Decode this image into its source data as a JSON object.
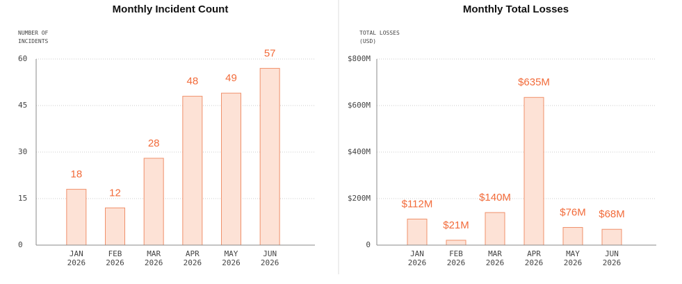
{
  "chart_data": [
    {
      "type": "bar",
      "title": "Monthly Incident Count",
      "y_label": "NUMBER OF INCIDENTS",
      "categories": [
        "JAN 2026",
        "FEB 2026",
        "MAR 2026",
        "APR 2026",
        "MAY 2026",
        "JUN 2026"
      ],
      "values": [
        18,
        12,
        28,
        48,
        49,
        57
      ],
      "color": "#fde2d6",
      "edge_color": "#f0906a",
      "label_color": "#f26b3a",
      "ylim": [
        0,
        60
      ],
      "yticks": [
        0,
        15,
        30,
        45,
        60
      ],
      "grid": true
    },
    {
      "type": "bar",
      "title": "Monthly Total Losses",
      "y_label": "TOTAL LOSSES (USD)",
      "categories": [
        "JAN 2026",
        "FEB 2026",
        "MAR 2026",
        "APR 2026",
        "MAY 2026",
        "JUN 2026"
      ],
      "values": [
        112000000,
        21000000,
        140000000,
        635000000,
        76000000,
        68000000
      ],
      "value_labels": [
        "$112M",
        "$21M",
        "$140M",
        "$635M",
        "$76M",
        "$68M"
      ],
      "color": "#fde2d6",
      "edge_color": "#f0906a",
      "label_color": "#f26b3a",
      "ylim": [
        0,
        800000000
      ],
      "yticks": [
        0,
        {
          "value": 200000000,
          "label": "$200M"
        },
        {
          "value": 400000000,
          "label": "$400M"
        },
        {
          "value": 600000000,
          "label": "$600M"
        },
        {
          "value": 800000000,
          "label": "$800M"
        }
      ],
      "grid": true
    }
  ]
}
